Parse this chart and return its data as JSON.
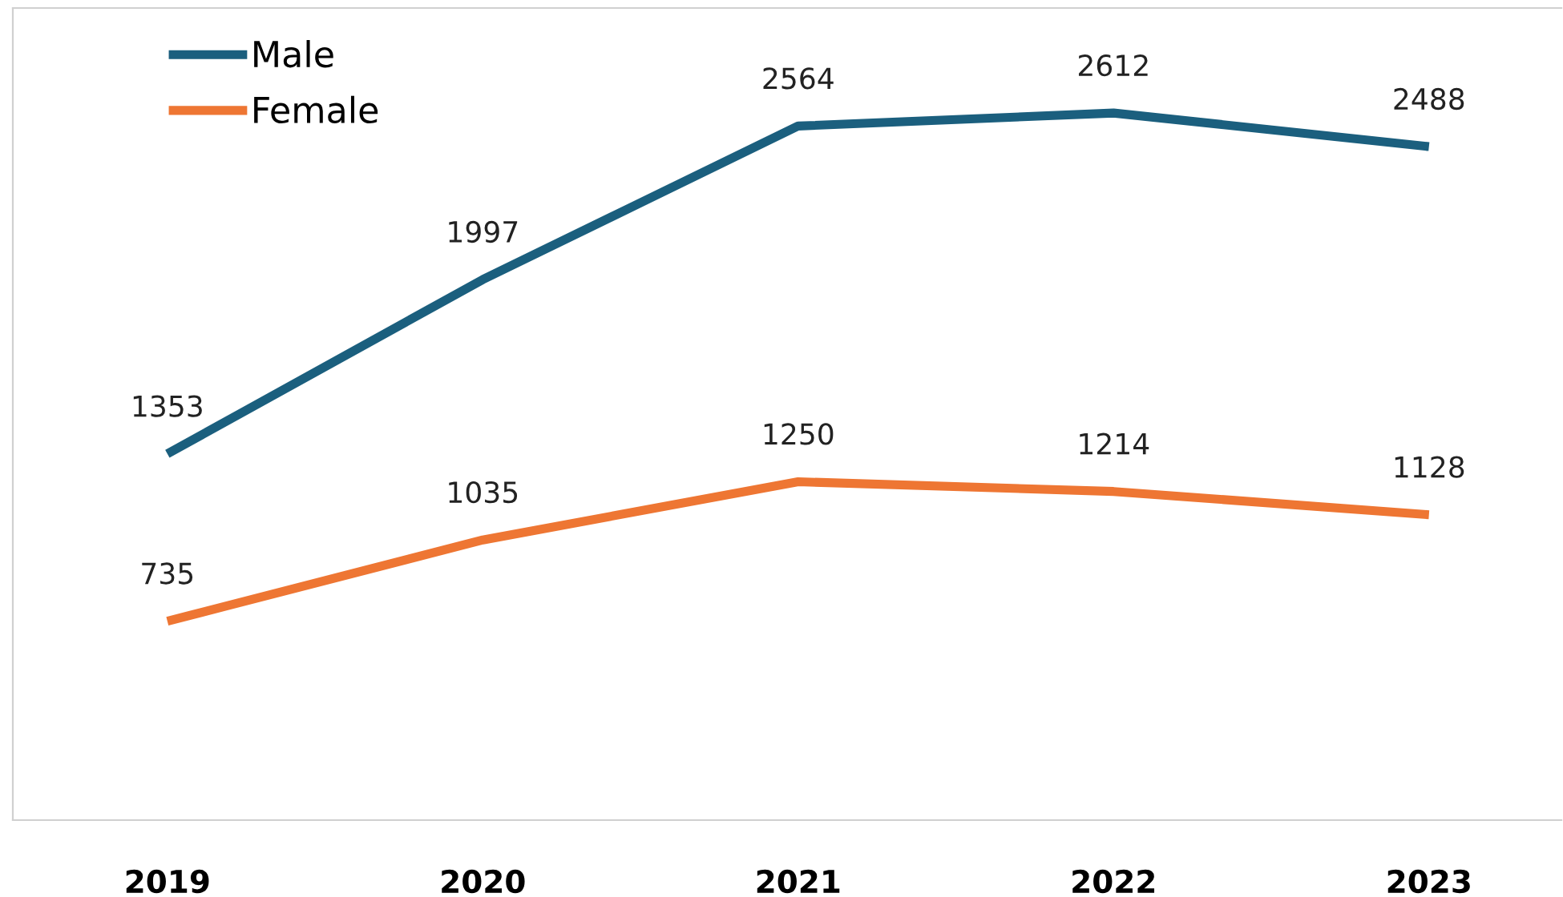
{
  "chart_data": {
    "type": "line",
    "categories": [
      "2019",
      "2020",
      "2021",
      "2022",
      "2023"
    ],
    "series": [
      {
        "name": "Male",
        "color": "#1b5f7e",
        "values": [
          1353,
          1997,
          2564,
          2612,
          2488
        ]
      },
      {
        "name": "Female",
        "color": "#ee7633",
        "values": [
          735,
          1035,
          1250,
          1214,
          1128
        ]
      }
    ],
    "ylim": [
      0,
      3000
    ],
    "data_labels": true,
    "legend": "top left",
    "grid": false,
    "tick_labels": "x",
    "marker": "none",
    "line_style": "solid"
  }
}
